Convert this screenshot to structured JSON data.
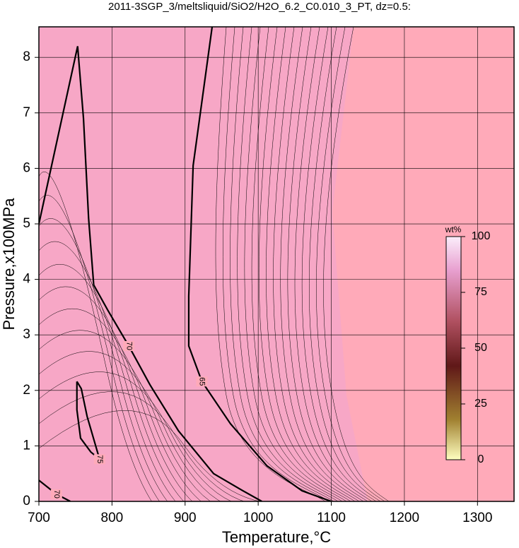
{
  "chart_data": {
    "type": "contour",
    "title": "2011-3SGP_3/meltsliquid/SiO2/H2O_6.2_C0.010_3_PT, dz=0.5:",
    "x_label": "Temperature,°C",
    "y_label": "Pressure,x100MPa",
    "xlim": [
      700,
      1350
    ],
    "ylim": [
      0,
      8.55
    ],
    "xticks": [
      700,
      800,
      900,
      1000,
      1100,
      1200,
      1300
    ],
    "yticks": [
      0,
      1,
      2,
      3,
      4,
      5,
      6,
      7,
      8
    ],
    "grid": true,
    "background_color": "#ffaab9",
    "line_color": "#000000",
    "contours": [
      {
        "level": 70,
        "x": [
          700,
          753,
          761,
          768,
          775,
          794,
          823,
          852,
          891,
          939,
          978,
          1005
        ],
        "y": [
          5.0,
          8.2,
          6.9,
          5.1,
          3.9,
          3.45,
          2.8,
          2.1,
          1.27,
          0.5,
          0.2,
          0
        ]
      },
      {
        "level": 65,
        "x": [
          937,
          911,
          905,
          905,
          923,
          962,
          1012,
          1060,
          1100
        ],
        "y": [
          8.55,
          6.05,
          3.7,
          2.8,
          2.16,
          1.4,
          0.64,
          0.19,
          0
        ]
      },
      {
        "level": 75,
        "x": [
          752,
          752,
          757,
          771,
          783,
          766,
          758,
          752
        ],
        "y": [
          2.16,
          1.65,
          1.14,
          0.89,
          0.76,
          1.53,
          2.03,
          2.16
        ]
      },
      {
        "level": 70,
        "x": [
          700,
          724,
          743
        ],
        "y": [
          0.38,
          0.13,
          0
        ]
      }
    ],
    "colorbar": {
      "label": "wt%",
      "lim": [
        0,
        100
      ],
      "ticks": [
        0,
        25,
        50,
        75,
        100
      ]
    }
  }
}
